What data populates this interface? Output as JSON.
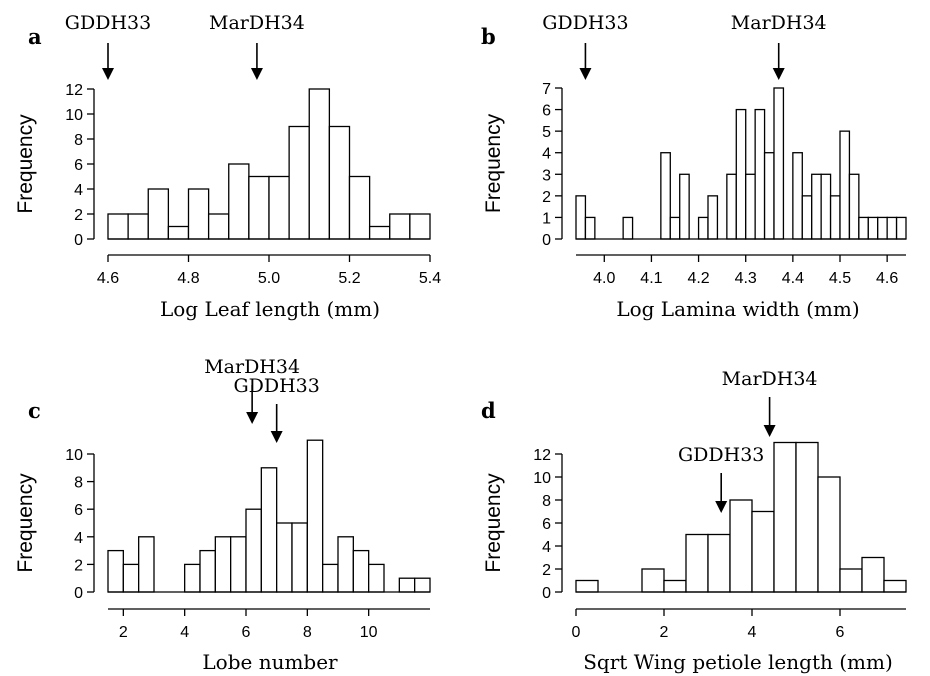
{
  "chart_data": [
    {
      "type": "bar",
      "panel": "a",
      "xlabel": "Log Leaf length (mm)",
      "ylabel": "Frequency",
      "bin_start": 4.6,
      "bin_width": 0.05,
      "values": [
        2,
        2,
        4,
        1,
        4,
        2,
        6,
        5,
        5,
        9,
        12,
        9,
        5,
        1,
        2,
        2
      ],
      "xlim": [
        4.6,
        5.4
      ],
      "xticks": [
        4.6,
        4.8,
        5.0,
        5.2,
        5.4
      ],
      "xtick_labels": [
        "4.6",
        "4.8",
        "5.0",
        "5.2",
        "5.4"
      ],
      "ylim": [
        0,
        12
      ],
      "yticks": [
        0,
        2,
        4,
        6,
        8,
        10,
        12
      ],
      "ytick_labels": [
        "0",
        "2",
        "4",
        "6",
        "8",
        "10",
        "12"
      ],
      "annotations": [
        {
          "label": "GDDH33",
          "x": 4.6
        },
        {
          "label": "MarDH34",
          "x": 4.97
        }
      ]
    },
    {
      "type": "bar",
      "panel": "b",
      "xlabel": "Log Lamina width (mm)",
      "ylabel": "Frequency",
      "bin_start": 3.94,
      "bin_width": 0.02,
      "values": [
        2,
        1,
        0,
        0,
        0,
        1,
        0,
        0,
        0,
        4,
        1,
        3,
        0,
        1,
        2,
        0,
        3,
        6,
        3,
        6,
        4,
        7,
        0,
        4,
        2,
        3,
        3,
        2,
        5,
        3,
        1,
        1,
        1,
        1,
        1
      ],
      "xlim": [
        3.94,
        4.64
      ],
      "xticks": [
        4.0,
        4.1,
        4.2,
        4.3,
        4.4,
        4.5,
        4.6
      ],
      "xtick_labels": [
        "4.0",
        "4.1",
        "4.2",
        "4.3",
        "4.4",
        "4.5",
        "4.6"
      ],
      "ylim": [
        0,
        7
      ],
      "yticks": [
        0,
        1,
        2,
        3,
        4,
        5,
        6,
        7
      ],
      "ytick_labels": [
        "0",
        "1",
        "2",
        "3",
        "4",
        "5",
        "6",
        "7"
      ],
      "annotations": [
        {
          "label": "GDDH33",
          "x": 3.96
        },
        {
          "label": "MarDH34",
          "x": 4.37
        }
      ]
    },
    {
      "type": "bar",
      "panel": "c",
      "xlabel": "Lobe number",
      "ylabel": "Frequency",
      "bin_start": 1.5,
      "bin_width": 0.5,
      "values": [
        3,
        2,
        4,
        0,
        0,
        2,
        3,
        4,
        4,
        6,
        9,
        5,
        5,
        11,
        2,
        4,
        3,
        2,
        0,
        1,
        1
      ],
      "xlim": [
        1.5,
        12
      ],
      "xticks": [
        2,
        4,
        6,
        8,
        10
      ],
      "xtick_labels": [
        "2",
        "4",
        "6",
        "8",
        "10"
      ],
      "ylim": [
        0,
        10
      ],
      "yticks": [
        0,
        2,
        4,
        6,
        8,
        10
      ],
      "ytick_labels": [
        "0",
        "2",
        "4",
        "6",
        "8",
        "10"
      ],
      "annotations": [
        {
          "label": "MarDH34",
          "x": 6.2
        },
        {
          "label": "GDDH33",
          "x": 7.0
        }
      ]
    },
    {
      "type": "bar",
      "panel": "d",
      "xlabel": "Sqrt Wing petiole length (mm)",
      "ylabel": "Frequency",
      "bin_start": 0,
      "bin_width": 0.5,
      "values": [
        1,
        0,
        0,
        2,
        1,
        5,
        5,
        8,
        7,
        13,
        13,
        10,
        2,
        3,
        1
      ],
      "xlim": [
        0,
        7.5
      ],
      "xticks": [
        0,
        2,
        4,
        6
      ],
      "xtick_labels": [
        "0",
        "2",
        "4",
        "6"
      ],
      "ylim": [
        0,
        12
      ],
      "yticks": [
        0,
        2,
        4,
        6,
        8,
        10,
        12
      ],
      "ytick_labels": [
        "0",
        "2",
        "4",
        "6",
        "8",
        "10",
        "12"
      ],
      "annotations": [
        {
          "label": "GDDH33",
          "x": 3.3
        },
        {
          "label": "MarDH34",
          "x": 4.4
        }
      ]
    }
  ]
}
